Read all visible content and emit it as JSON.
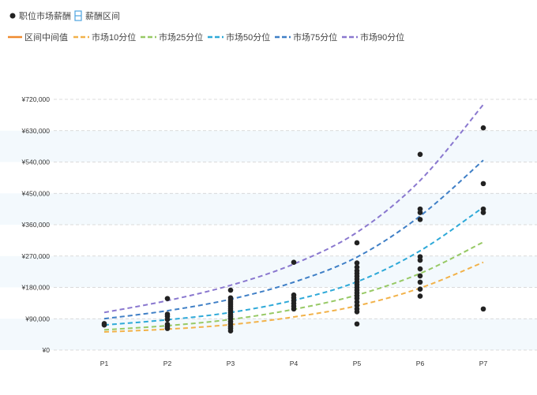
{
  "legend": {
    "row1": [
      {
        "label": "职位市场薪酬",
        "icon": "dot-icon",
        "color": "#222222"
      },
      {
        "label": "薪酬区间",
        "icon": "range-box-icon",
        "color": "#4da3e0"
      }
    ],
    "row2": [
      {
        "label": "区间中间值",
        "icon": "solid-line-icon",
        "color": "#ef8a2e"
      },
      {
        "label": "市场10分位",
        "icon": "dashed-line-icon",
        "color": "#f2b24a"
      },
      {
        "label": "市场25分位",
        "icon": "dashed-line-icon",
        "color": "#97c965"
      },
      {
        "label": "市场50分位",
        "icon": "dashed-line-icon",
        "color": "#2ea9d8"
      },
      {
        "label": "市场75分位",
        "icon": "dashed-line-icon",
        "color": "#3f7fc6"
      },
      {
        "label": "市场90分位",
        "icon": "dashed-line-icon",
        "color": "#8a78cf"
      }
    ]
  },
  "chart_data": {
    "type": "scatter",
    "categories": [
      "P1",
      "P2",
      "P3",
      "P4",
      "P5",
      "P6",
      "P7"
    ],
    "ylim": [
      0,
      720000
    ],
    "yticks": [
      0,
      90000,
      180000,
      270000,
      360000,
      450000,
      540000,
      630000,
      720000
    ],
    "ytick_labels": [
      "¥0",
      "¥90,000",
      "¥180,000",
      "¥270,000",
      "¥360,000",
      "¥450,000",
      "¥540,000",
      "¥630,000",
      "¥720,000"
    ],
    "grid": true,
    "band_color": "#f3f9fd",
    "series": [
      {
        "name": "市场10分位",
        "style": "dashed",
        "color": "#f2b24a",
        "values": [
          52000,
          60000,
          73000,
          95000,
          127000,
          178000,
          252000
        ]
      },
      {
        "name": "市场25分位",
        "style": "dashed",
        "color": "#97c965",
        "values": [
          58000,
          70000,
          88000,
          117000,
          158000,
          220000,
          310000
        ]
      },
      {
        "name": "市场50分位",
        "style": "dashed",
        "color": "#2ea9d8",
        "values": [
          72000,
          87000,
          108000,
          143000,
          196000,
          285000,
          410000
        ]
      },
      {
        "name": "市场75分位",
        "style": "dashed",
        "color": "#3f7fc6",
        "values": [
          90000,
          113000,
          146000,
          195000,
          267000,
          385000,
          545000
        ]
      },
      {
        "name": "市场90分位",
        "style": "dashed",
        "color": "#8a78cf",
        "values": [
          108000,
          142000,
          186000,
          247000,
          338000,
          487000,
          705000
        ]
      }
    ],
    "points": {
      "name": "职位市场薪酬",
      "color": "#222222",
      "values": [
        [
          "P1",
          72000
        ],
        [
          "P1",
          76000
        ],
        [
          "P2",
          62000
        ],
        [
          "P2",
          68000
        ],
        [
          "P2",
          74000
        ],
        [
          "P2",
          88000
        ],
        [
          "P2",
          97000
        ],
        [
          "P2",
          103000
        ],
        [
          "P2",
          148000
        ],
        [
          "P3",
          55000
        ],
        [
          "P3",
          62000
        ],
        [
          "P3",
          68000
        ],
        [
          "P3",
          75000
        ],
        [
          "P3",
          82000
        ],
        [
          "P3",
          90000
        ],
        [
          "P3",
          96000
        ],
        [
          "P3",
          102000
        ],
        [
          "P3",
          108000
        ],
        [
          "P3",
          114000
        ],
        [
          "P3",
          120000
        ],
        [
          "P3",
          126000
        ],
        [
          "P3",
          132000
        ],
        [
          "P3",
          138000
        ],
        [
          "P3",
          144000
        ],
        [
          "P3",
          150000
        ],
        [
          "P3",
          172000
        ],
        [
          "P4",
          118000
        ],
        [
          "P4",
          126000
        ],
        [
          "P4",
          134000
        ],
        [
          "P4",
          142000
        ],
        [
          "P4",
          150000
        ],
        [
          "P4",
          158000
        ],
        [
          "P4",
          252000
        ],
        [
          "P5",
          75000
        ],
        [
          "P5",
          110000
        ],
        [
          "P5",
          118000
        ],
        [
          "P5",
          128000
        ],
        [
          "P5",
          138000
        ],
        [
          "P5",
          148000
        ],
        [
          "P5",
          156000
        ],
        [
          "P5",
          164000
        ],
        [
          "P5",
          172000
        ],
        [
          "P5",
          180000
        ],
        [
          "P5",
          188000
        ],
        [
          "P5",
          196000
        ],
        [
          "P5",
          204000
        ],
        [
          "P5",
          212000
        ],
        [
          "P5",
          220000
        ],
        [
          "P5",
          228000
        ],
        [
          "P5",
          238000
        ],
        [
          "P5",
          250000
        ],
        [
          "P5",
          308000
        ],
        [
          "P6",
          155000
        ],
        [
          "P6",
          175000
        ],
        [
          "P6",
          195000
        ],
        [
          "P6",
          213000
        ],
        [
          "P6",
          233000
        ],
        [
          "P6",
          258000
        ],
        [
          "P6",
          268000
        ],
        [
          "P6",
          375000
        ],
        [
          "P6",
          395000
        ],
        [
          "P6",
          405000
        ],
        [
          "P6",
          562000
        ],
        [
          "P7",
          118000
        ],
        [
          "P7",
          395000
        ],
        [
          "P7",
          405000
        ],
        [
          "P7",
          478000
        ],
        [
          "P7",
          638000
        ]
      ]
    }
  }
}
